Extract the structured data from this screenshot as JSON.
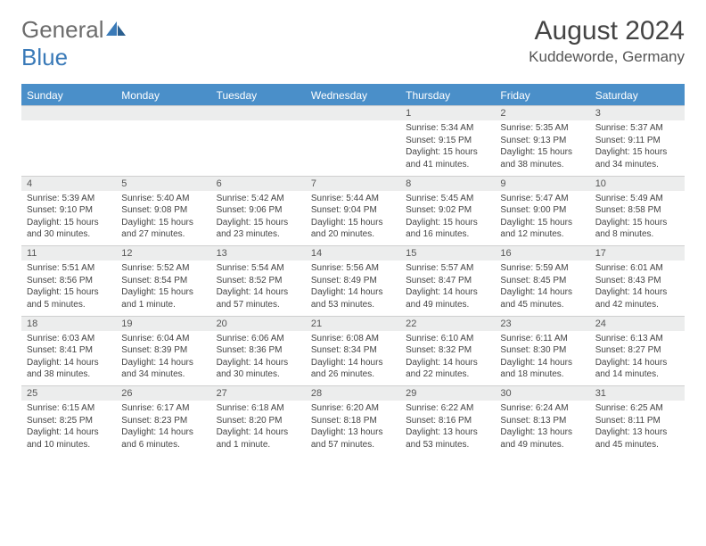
{
  "logo": {
    "text1": "General",
    "text2": "Blue"
  },
  "title": "August 2024",
  "location": "Kuddeworde, Germany",
  "colors": {
    "header_bg": "#4a8fc9",
    "header_text": "#ffffff",
    "daynum_bg": "#eceded",
    "text": "#444444",
    "logo_gray": "#6c6c6c",
    "logo_blue": "#3a7ab8"
  },
  "days_of_week": [
    "Sunday",
    "Monday",
    "Tuesday",
    "Wednesday",
    "Thursday",
    "Friday",
    "Saturday"
  ],
  "weeks": [
    [
      null,
      null,
      null,
      null,
      {
        "n": "1",
        "sr": "Sunrise: 5:34 AM",
        "ss": "Sunset: 9:15 PM",
        "dl": "Daylight: 15 hours and 41 minutes."
      },
      {
        "n": "2",
        "sr": "Sunrise: 5:35 AM",
        "ss": "Sunset: 9:13 PM",
        "dl": "Daylight: 15 hours and 38 minutes."
      },
      {
        "n": "3",
        "sr": "Sunrise: 5:37 AM",
        "ss": "Sunset: 9:11 PM",
        "dl": "Daylight: 15 hours and 34 minutes."
      }
    ],
    [
      {
        "n": "4",
        "sr": "Sunrise: 5:39 AM",
        "ss": "Sunset: 9:10 PM",
        "dl": "Daylight: 15 hours and 30 minutes."
      },
      {
        "n": "5",
        "sr": "Sunrise: 5:40 AM",
        "ss": "Sunset: 9:08 PM",
        "dl": "Daylight: 15 hours and 27 minutes."
      },
      {
        "n": "6",
        "sr": "Sunrise: 5:42 AM",
        "ss": "Sunset: 9:06 PM",
        "dl": "Daylight: 15 hours and 23 minutes."
      },
      {
        "n": "7",
        "sr": "Sunrise: 5:44 AM",
        "ss": "Sunset: 9:04 PM",
        "dl": "Daylight: 15 hours and 20 minutes."
      },
      {
        "n": "8",
        "sr": "Sunrise: 5:45 AM",
        "ss": "Sunset: 9:02 PM",
        "dl": "Daylight: 15 hours and 16 minutes."
      },
      {
        "n": "9",
        "sr": "Sunrise: 5:47 AM",
        "ss": "Sunset: 9:00 PM",
        "dl": "Daylight: 15 hours and 12 minutes."
      },
      {
        "n": "10",
        "sr": "Sunrise: 5:49 AM",
        "ss": "Sunset: 8:58 PM",
        "dl": "Daylight: 15 hours and 8 minutes."
      }
    ],
    [
      {
        "n": "11",
        "sr": "Sunrise: 5:51 AM",
        "ss": "Sunset: 8:56 PM",
        "dl": "Daylight: 15 hours and 5 minutes."
      },
      {
        "n": "12",
        "sr": "Sunrise: 5:52 AM",
        "ss": "Sunset: 8:54 PM",
        "dl": "Daylight: 15 hours and 1 minute."
      },
      {
        "n": "13",
        "sr": "Sunrise: 5:54 AM",
        "ss": "Sunset: 8:52 PM",
        "dl": "Daylight: 14 hours and 57 minutes."
      },
      {
        "n": "14",
        "sr": "Sunrise: 5:56 AM",
        "ss": "Sunset: 8:49 PM",
        "dl": "Daylight: 14 hours and 53 minutes."
      },
      {
        "n": "15",
        "sr": "Sunrise: 5:57 AM",
        "ss": "Sunset: 8:47 PM",
        "dl": "Daylight: 14 hours and 49 minutes."
      },
      {
        "n": "16",
        "sr": "Sunrise: 5:59 AM",
        "ss": "Sunset: 8:45 PM",
        "dl": "Daylight: 14 hours and 45 minutes."
      },
      {
        "n": "17",
        "sr": "Sunrise: 6:01 AM",
        "ss": "Sunset: 8:43 PM",
        "dl": "Daylight: 14 hours and 42 minutes."
      }
    ],
    [
      {
        "n": "18",
        "sr": "Sunrise: 6:03 AM",
        "ss": "Sunset: 8:41 PM",
        "dl": "Daylight: 14 hours and 38 minutes."
      },
      {
        "n": "19",
        "sr": "Sunrise: 6:04 AM",
        "ss": "Sunset: 8:39 PM",
        "dl": "Daylight: 14 hours and 34 minutes."
      },
      {
        "n": "20",
        "sr": "Sunrise: 6:06 AM",
        "ss": "Sunset: 8:36 PM",
        "dl": "Daylight: 14 hours and 30 minutes."
      },
      {
        "n": "21",
        "sr": "Sunrise: 6:08 AM",
        "ss": "Sunset: 8:34 PM",
        "dl": "Daylight: 14 hours and 26 minutes."
      },
      {
        "n": "22",
        "sr": "Sunrise: 6:10 AM",
        "ss": "Sunset: 8:32 PM",
        "dl": "Daylight: 14 hours and 22 minutes."
      },
      {
        "n": "23",
        "sr": "Sunrise: 6:11 AM",
        "ss": "Sunset: 8:30 PM",
        "dl": "Daylight: 14 hours and 18 minutes."
      },
      {
        "n": "24",
        "sr": "Sunrise: 6:13 AM",
        "ss": "Sunset: 8:27 PM",
        "dl": "Daylight: 14 hours and 14 minutes."
      }
    ],
    [
      {
        "n": "25",
        "sr": "Sunrise: 6:15 AM",
        "ss": "Sunset: 8:25 PM",
        "dl": "Daylight: 14 hours and 10 minutes."
      },
      {
        "n": "26",
        "sr": "Sunrise: 6:17 AM",
        "ss": "Sunset: 8:23 PM",
        "dl": "Daylight: 14 hours and 6 minutes."
      },
      {
        "n": "27",
        "sr": "Sunrise: 6:18 AM",
        "ss": "Sunset: 8:20 PM",
        "dl": "Daylight: 14 hours and 1 minute."
      },
      {
        "n": "28",
        "sr": "Sunrise: 6:20 AM",
        "ss": "Sunset: 8:18 PM",
        "dl": "Daylight: 13 hours and 57 minutes."
      },
      {
        "n": "29",
        "sr": "Sunrise: 6:22 AM",
        "ss": "Sunset: 8:16 PM",
        "dl": "Daylight: 13 hours and 53 minutes."
      },
      {
        "n": "30",
        "sr": "Sunrise: 6:24 AM",
        "ss": "Sunset: 8:13 PM",
        "dl": "Daylight: 13 hours and 49 minutes."
      },
      {
        "n": "31",
        "sr": "Sunrise: 6:25 AM",
        "ss": "Sunset: 8:11 PM",
        "dl": "Daylight: 13 hours and 45 minutes."
      }
    ]
  ]
}
